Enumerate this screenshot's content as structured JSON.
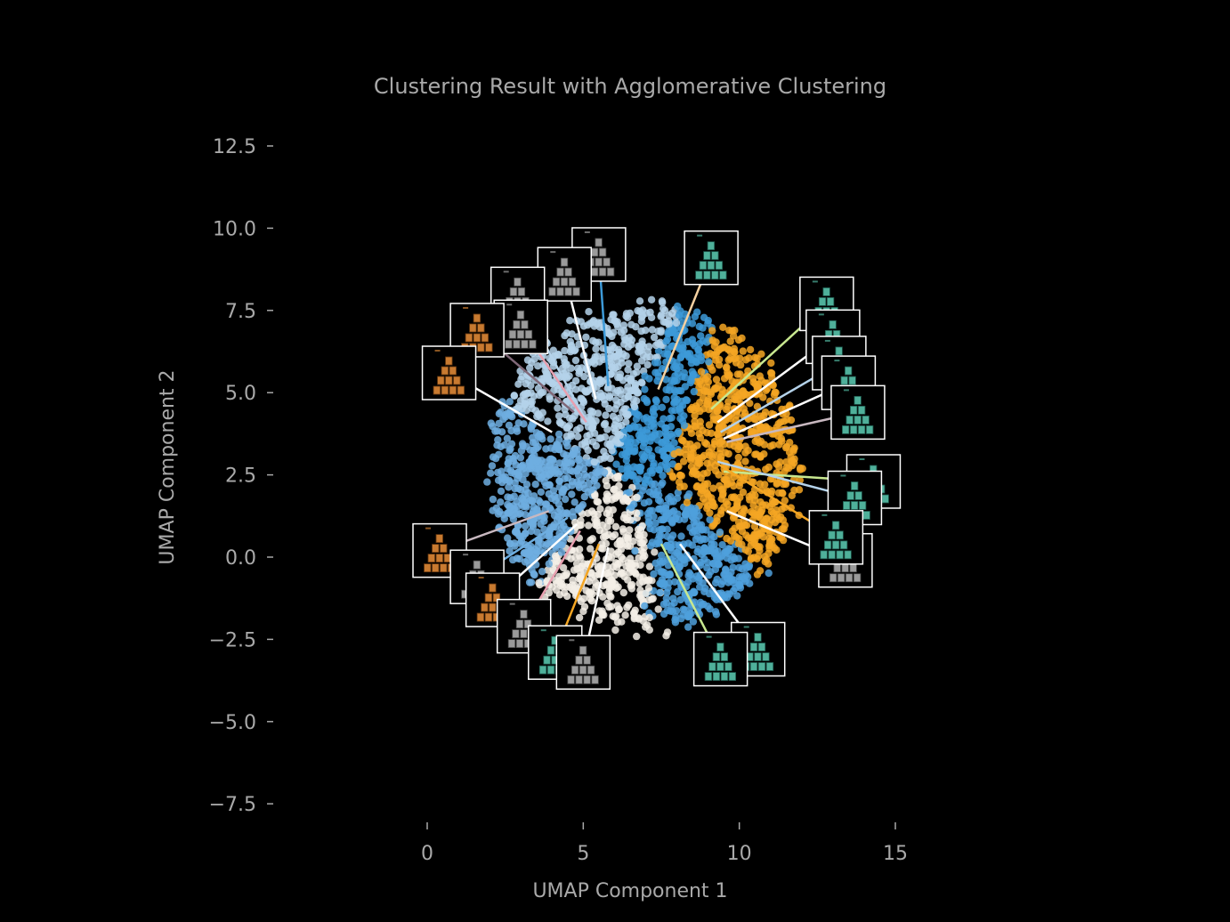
{
  "chart_data": {
    "type": "scatter",
    "title": "Clustering Result with Agglomerative Clustering",
    "xlabel": "UMAP Component 1",
    "ylabel": "UMAP Component 2",
    "xlim": [
      -1.3,
      16.3
    ],
    "ylim": [
      -8.5,
      13.5
    ],
    "x_ticks": [
      0,
      5,
      10,
      15
    ],
    "x_tick_labels": [
      "0",
      "5",
      "10",
      "15"
    ],
    "y_ticks": [
      -7.5,
      -5.0,
      -2.5,
      0.0,
      2.5,
      5.0,
      7.5,
      10.0,
      12.5
    ],
    "y_tick_labels": [
      "−7.5",
      "−5.0",
      "−2.5",
      "0.0",
      "2.5",
      "5.0",
      "7.5",
      "10.0",
      "12.5"
    ],
    "grid": false,
    "legend": "none",
    "point_cloud": {
      "center": [
        7.0,
        2.7
      ],
      "radius": 5.0,
      "clusters": [
        {
          "color": "#b4d2ea",
          "center": [
            5.3,
            4.2
          ]
        },
        {
          "color": "#6eaee0",
          "center": [
            4.2,
            2.5
          ]
        },
        {
          "color": "#3d9ad8",
          "center": [
            7.2,
            3.3
          ]
        },
        {
          "color": "#f5a623",
          "center": [
            8.6,
            2.8
          ]
        },
        {
          "color": "#f3eee6",
          "center": [
            6.3,
            1.2
          ]
        },
        {
          "color": "#4fa0dc",
          "center": [
            7.3,
            1.4
          ]
        }
      ]
    },
    "thumbnails": [
      {
        "image": "pyramid-gray",
        "x": 5.5,
        "y": 9.2,
        "lx": 5.8,
        "ly": 5.2,
        "line_color": "#3d9ad8"
      },
      {
        "image": "pyramid-gray",
        "x": 4.4,
        "y": 8.6,
        "lx": 5.4,
        "ly": 4.8,
        "line_color": "#ffffff"
      },
      {
        "image": "pyramid-gray",
        "x": 2.9,
        "y": 8.0,
        "lx": 5.0,
        "ly": 4.3,
        "line_color": "#b4d2ea"
      },
      {
        "image": "pyramid-gray",
        "x": 3.0,
        "y": 7.0,
        "lx": 5.1,
        "ly": 4.1,
        "line_color": "#e8a0b0"
      },
      {
        "image": "pyramid-orange",
        "x": 1.6,
        "y": 6.9,
        "lx": 4.7,
        "ly": 4.4,
        "line_color": "#806878"
      },
      {
        "image": "pyramid-orange",
        "x": 0.7,
        "y": 5.6,
        "lx": 4.0,
        "ly": 3.8,
        "line_color": "#ffffff"
      },
      {
        "image": "pyramid-teal",
        "x": 9.1,
        "y": 9.1,
        "lx": 7.4,
        "ly": 5.1,
        "line_color": "#f5d0a0"
      },
      {
        "image": "pyramid-teal",
        "x": 12.8,
        "y": 7.7,
        "lx": 9.1,
        "ly": 4.5,
        "line_color": "#c8e890"
      },
      {
        "image": "pyramid-teal",
        "x": 13.0,
        "y": 6.7,
        "lx": 9.3,
        "ly": 4.1,
        "line_color": "#ffffff"
      },
      {
        "image": "pyramid-teal",
        "x": 13.2,
        "y": 5.9,
        "lx": 9.4,
        "ly": 3.8,
        "line_color": "#b4d2ea"
      },
      {
        "image": "pyramid-teal",
        "x": 13.5,
        "y": 5.3,
        "lx": 9.5,
        "ly": 3.6,
        "line_color": "#ffffff"
      },
      {
        "image": "pyramid-teal",
        "x": 13.8,
        "y": 4.4,
        "lx": 9.6,
        "ly": 3.5,
        "line_color": "#c8b8c0"
      },
      {
        "image": "pyramid-teal",
        "x": 14.3,
        "y": 2.3,
        "lx": 9.5,
        "ly": 2.6,
        "line_color": "#c8e890"
      },
      {
        "image": "pyramid-teal",
        "x": 13.7,
        "y": 1.8,
        "lx": 9.3,
        "ly": 2.9,
        "line_color": "#b4d2ea"
      },
      {
        "image": "pyramid-gray",
        "x": 13.4,
        "y": -0.1,
        "lx": 9.6,
        "ly": 1.4,
        "line_color": "#ffffff"
      },
      {
        "image": "pyramid-teal",
        "x": 13.1,
        "y": 0.6,
        "lx": 9.2,
        "ly": 2.9,
        "line_color": "#f5a623"
      },
      {
        "image": "pyramid-teal",
        "x": 10.6,
        "y": -2.8,
        "lx": 8.1,
        "ly": 0.4,
        "line_color": "#ffffff"
      },
      {
        "image": "pyramid-teal",
        "x": 9.4,
        "y": -3.1,
        "lx": 7.5,
        "ly": 0.4,
        "line_color": "#c8e890"
      },
      {
        "image": "pyramid-orange",
        "x": 0.4,
        "y": 0.2,
        "lx": 3.9,
        "ly": 1.4,
        "line_color": "#c8b8c0"
      },
      {
        "image": "pyramid-gray",
        "x": 1.6,
        "y": -0.6,
        "lx": 4.5,
        "ly": 1.2,
        "line_color": "#6eaee0"
      },
      {
        "image": "pyramid-orange",
        "x": 2.1,
        "y": -1.3,
        "lx": 4.8,
        "ly": 1.0,
        "line_color": "#ffffff"
      },
      {
        "image": "pyramid-gray",
        "x": 3.1,
        "y": -2.1,
        "lx": 4.9,
        "ly": 0.8,
        "line_color": "#e8a0b0"
      },
      {
        "image": "pyramid-teal",
        "x": 4.1,
        "y": -2.9,
        "lx": 5.5,
        "ly": 0.4,
        "line_color": "#f5a623"
      },
      {
        "image": "pyramid-gray",
        "x": 5.0,
        "y": -3.2,
        "lx": 5.8,
        "ly": 0.3,
        "line_color": "#ffffff"
      }
    ]
  }
}
